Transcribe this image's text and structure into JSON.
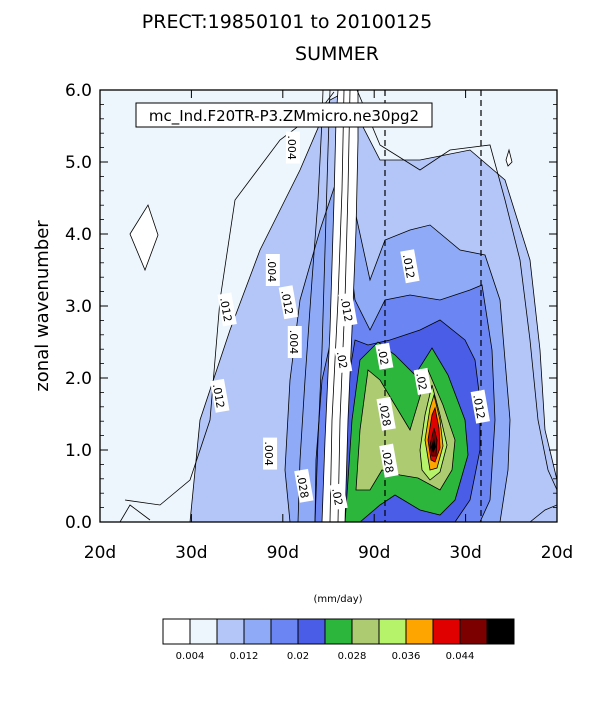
{
  "chart_data": {
    "type": "heatmap",
    "title": "SUMMER",
    "subtitle": "PRECT:19850101 to 20100125",
    "case_label": "mc_Ind.F20TR-P3.ZMmicro.ne30pg2",
    "ylabel": "zonal wavenumber",
    "xlabel": "",
    "ylim": [
      0.0,
      6.0
    ],
    "ytick_labels": [
      "0.0",
      "1.0",
      "2.0",
      "3.0",
      "4.0",
      "5.0",
      "6.0"
    ],
    "xtick_labels": [
      "20d",
      "30d",
      "90d",
      "90d",
      "30d",
      "20d"
    ],
    "units": "(mm/day)",
    "grid": false,
    "contour_levels": [
      0.004,
      0.008,
      0.012,
      0.016,
      0.02,
      0.024,
      0.028,
      0.032,
      0.036,
      0.04,
      0.044,
      0.048
    ],
    "colorbar_labels": [
      "0.004",
      "0.012",
      "0.02",
      "0.028",
      "0.036",
      "0.044"
    ],
    "colorbar_colors": [
      "#ffffff",
      "#eef6fd",
      "#b3c6f7",
      "#8faaf6",
      "#6b85f2",
      "#4a5de6",
      "#2db63c",
      "#adcc71",
      "#b6f36a",
      "#ffa500",
      "#e00000",
      "#7d0000",
      "#000000"
    ],
    "contour_labels": [
      {
        "text": ".004",
        "x": -0.4,
        "y": 5.2
      },
      {
        "text": ".004",
        "x": -0.62,
        "y": 3.5
      },
      {
        "text": ".004",
        "x": -0.38,
        "y": 2.5
      },
      {
        "text": ".004",
        "x": -0.65,
        "y": 0.95
      },
      {
        "text": ".012",
        "x": -1.12,
        "y": 2.95
      },
      {
        "text": ".012",
        "x": -1.2,
        "y": 1.75
      },
      {
        "text": ".012",
        "x": -0.45,
        "y": 3.05
      },
      {
        "text": ".012",
        "x": 0.2,
        "y": 2.95
      },
      {
        "text": ".012",
        "x": 0.88,
        "y": 3.55
      },
      {
        "text": ".012",
        "x": 1.65,
        "y": 1.6
      },
      {
        "text": ".02",
        "x": 0.15,
        "y": 2.25
      },
      {
        "text": ".02",
        "x": 0.6,
        "y": 2.3
      },
      {
        "text": ".02",
        "x": 1.02,
        "y": 1.95
      },
      {
        "text": ".02",
        "x": 0.1,
        "y": 0.35
      },
      {
        "text": ".028",
        "x": -0.28,
        "y": 0.5
      },
      {
        "text": ".028",
        "x": 0.62,
        "y": 1.5
      },
      {
        "text": ".028",
        "x": 0.65,
        "y": 0.85
      }
    ]
  }
}
